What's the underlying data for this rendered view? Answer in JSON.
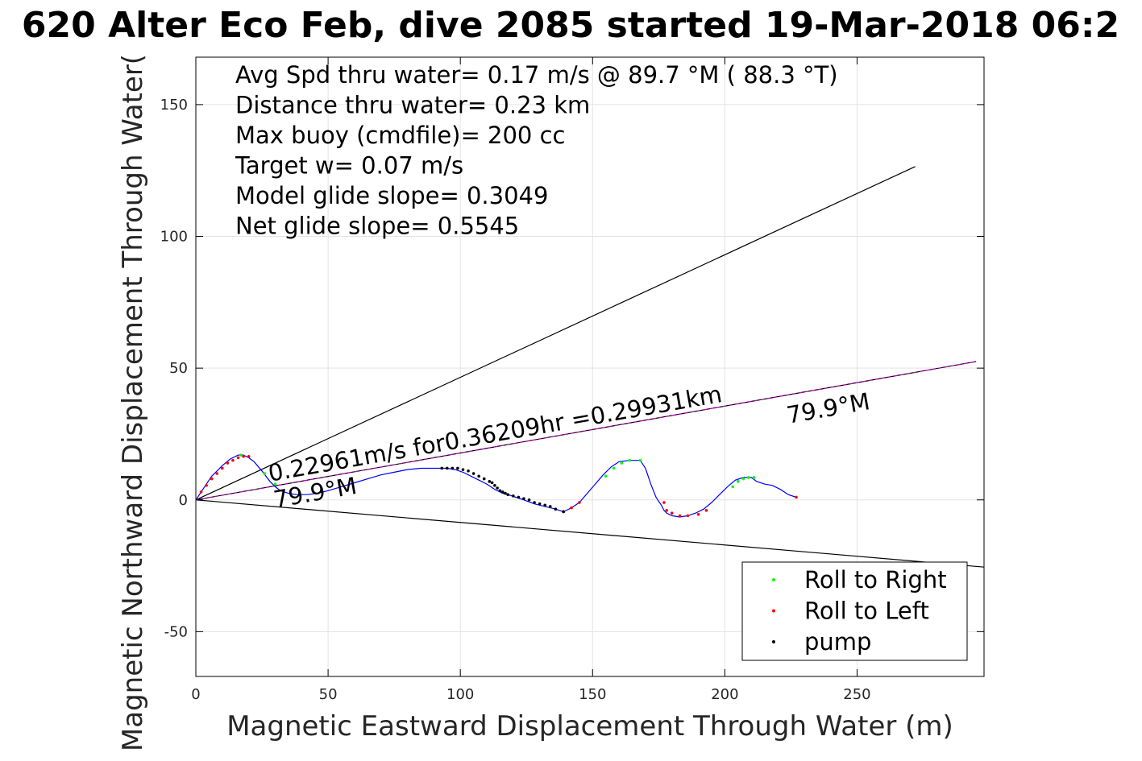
{
  "chart_data": {
    "type": "line",
    "title": "620 Alter Eco Feb, dive 2085 started 19-Mar-2018 06:2",
    "xlabel": "Magnetic Eastward Displacement Through Water (m)",
    "ylabel": "Magnetic Northward Displacement Through Water(",
    "xlim": [
      0,
      298
    ],
    "ylim": [
      -67,
      168
    ],
    "xticks": [
      0,
      50,
      100,
      150,
      200,
      250
    ],
    "yticks": [
      -50,
      0,
      50,
      100,
      150
    ],
    "grid": true,
    "legend_position": "bottom-right",
    "stats": [
      "Avg Spd thru water=  0.17 m/s @  89.7 °M ( 88.3 °T)",
      "Distance thru water=  0.23 km",
      "Max buoy (cmdfile)= 200 cc",
      "Target w= 0.07 m/s",
      "Model glide slope= 0.3049",
      "Net glide slope= 0.5545"
    ],
    "annotations": [
      {
        "text": "0.22961m/s for0.36209hr =0.29931km",
        "x": 28,
        "y": 7,
        "angle_deg": 10
      },
      {
        "text": "79.9°M",
        "x": 224,
        "y": 29,
        "angle_deg": 10
      },
      {
        "text": "79.9°M",
        "x": 30,
        "y": -3,
        "angle_deg": 10
      }
    ],
    "reference_lines": [
      {
        "name": "upper-bound",
        "color": "#000000",
        "x": [
          0,
          272
        ],
        "y": [
          0,
          126.5
        ]
      },
      {
        "name": "lower-bound",
        "color": "#000000",
        "x": [
          0,
          298
        ],
        "y": [
          0,
          -25.5
        ]
      },
      {
        "name": "current-heading",
        "color": "#000000",
        "dash_color": "#cc00cc",
        "x": [
          0,
          295
        ],
        "y": [
          0,
          52.5
        ]
      }
    ],
    "series": [
      {
        "name": "track",
        "color": "#0000ff",
        "x": [
          0,
          2,
          4,
          6,
          8,
          10,
          13,
          16,
          18,
          20,
          22,
          25,
          28,
          30,
          32,
          35,
          38,
          42,
          46,
          50,
          55,
          60,
          65,
          70,
          75,
          80,
          85,
          90,
          93,
          95,
          98,
          101,
          104,
          107,
          110,
          113,
          116,
          118,
          121,
          124,
          128,
          132,
          136,
          139,
          142,
          145,
          148,
          151,
          154,
          157,
          160,
          164,
          168,
          170,
          172,
          174,
          176,
          177,
          178,
          180,
          183,
          186,
          189,
          192,
          195,
          198,
          201,
          204,
          207,
          210,
          212,
          215,
          218,
          221,
          224,
          227
        ],
        "y": [
          0,
          3,
          6,
          9,
          11,
          13,
          15.5,
          17,
          17,
          16,
          14.5,
          11,
          7,
          5,
          3.5,
          2.5,
          2,
          2,
          2.5,
          3.5,
          5,
          6.5,
          8,
          9.5,
          10.5,
          11.5,
          12,
          12,
          12,
          12,
          11.5,
          10.5,
          9,
          7.5,
          6,
          4,
          2.5,
          2,
          1,
          0,
          -1.5,
          -2.5,
          -3.5,
          -4.5,
          -3,
          -1,
          2.5,
          6,
          9.5,
          12.5,
          14.5,
          15,
          15,
          12,
          6,
          1,
          -2,
          -4,
          -5,
          -6,
          -6.5,
          -6,
          -5,
          -3.5,
          -1,
          2,
          5,
          7.5,
          8.5,
          8.5,
          7,
          6,
          5.5,
          4,
          2,
          1
        ]
      }
    ],
    "markers": [
      {
        "name": "Roll to Right",
        "color": "#00ff00",
        "x": [
          17,
          26,
          30,
          155,
          158,
          161,
          164,
          168,
          203,
          205,
          207,
          209,
          211
        ],
        "y": [
          17,
          10,
          6,
          9,
          12,
          14,
          15,
          15,
          5,
          7,
          8,
          8.5,
          8.5
        ]
      },
      {
        "name": "Roll to Left",
        "color": "#ff0000",
        "x": [
          2,
          4,
          6,
          8,
          10,
          12,
          14,
          16,
          18,
          20,
          139,
          142,
          145,
          177,
          178,
          180,
          183,
          186,
          190,
          193,
          227
        ],
        "y": [
          3,
          5.5,
          8,
          10,
          12,
          14,
          15,
          16,
          16.5,
          16.5,
          -4.5,
          -3,
          -1,
          -1,
          -4,
          -5,
          -6,
          -6,
          -5.5,
          -4,
          1
        ]
      },
      {
        "name": "pump",
        "color": "#000000",
        "x": [
          93,
          95,
          97,
          99,
          101,
          103,
          105,
          107,
          109,
          111,
          112,
          113,
          114,
          115,
          116,
          117,
          118,
          120,
          122,
          124,
          126,
          128,
          130,
          132,
          134,
          136,
          139
        ],
        "y": [
          12,
          12,
          12,
          12,
          11.5,
          11,
          10,
          9,
          8,
          7,
          6.5,
          5.5,
          4.5,
          3.5,
          3,
          2.5,
          2,
          1.5,
          1,
          0.5,
          0,
          -1,
          -1.5,
          -2,
          -2.5,
          -3.5,
          -4.5
        ]
      }
    ],
    "legend": [
      {
        "label": "Roll to Right",
        "color": "#00ff00"
      },
      {
        "label": "Roll to Left",
        "color": "#ff0000"
      },
      {
        "label": "pump",
        "color": "#000000"
      }
    ]
  }
}
